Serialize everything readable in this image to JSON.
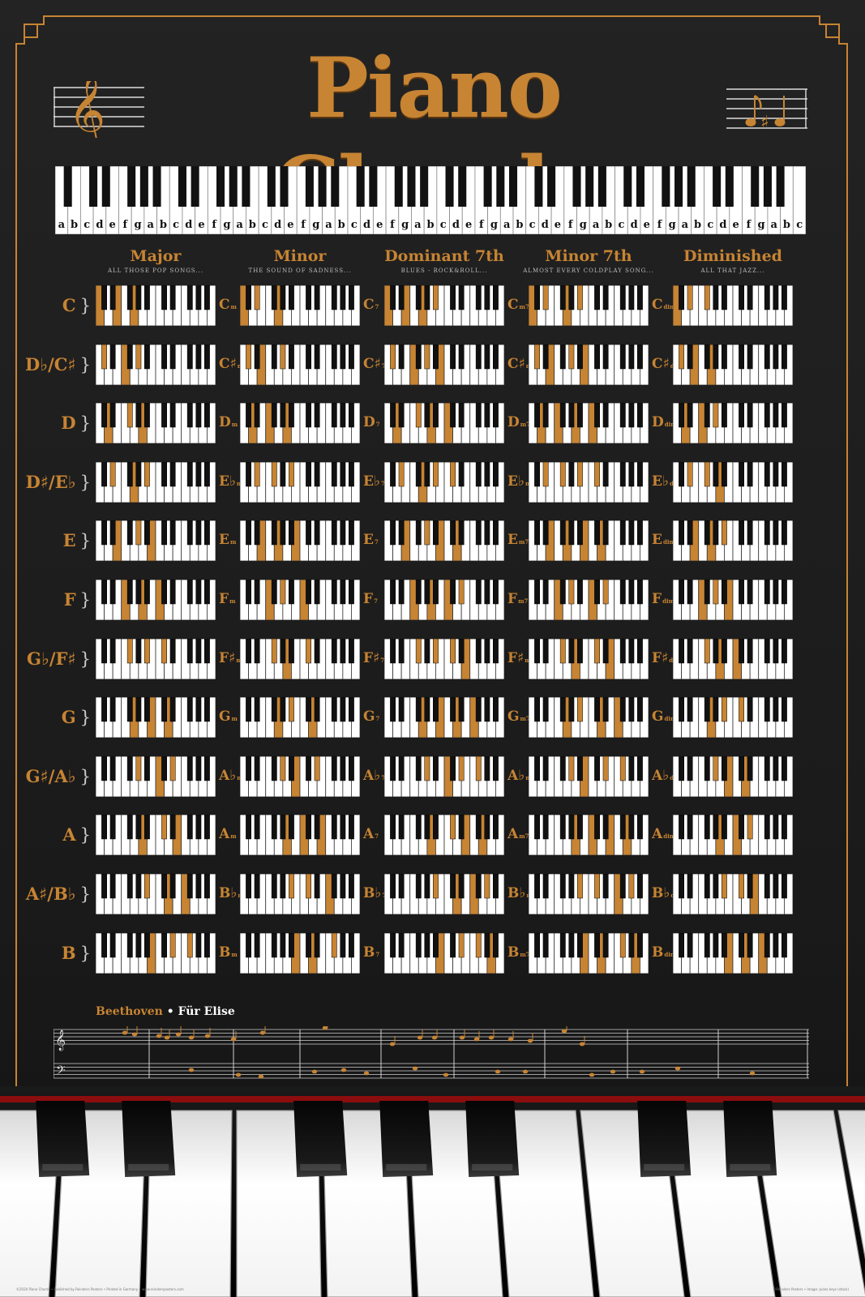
{
  "title": "Piano Chords",
  "strip_letters": "abcdefgabcdefgabcdefgabcdefgabcdefgabcdefgabcdefgabcdefgabc",
  "columns": [
    {
      "heading": "Major",
      "sub": "ALL THOSE POP SONGS...",
      "suffix": ""
    },
    {
      "heading": "Minor",
      "sub": "THE SOUND OF SADNESS...",
      "suffix": "m"
    },
    {
      "heading": "Dominant 7th",
      "sub": "BLUES - ROCK&ROLL...",
      "suffix": "7"
    },
    {
      "heading": "Minor 7th",
      "sub": "ALMOST EVERY COLDPLAY SONG...",
      "suffix": "m7"
    },
    {
      "heading": "Diminished",
      "sub": "ALL THAT JAZZ...",
      "suffix": "dim"
    }
  ],
  "rows": [
    {
      "root": "C",
      "chord_name": "C",
      "pc": 0
    },
    {
      "root": "D♭/C♯",
      "chord_name": "C♯",
      "pc": 1
    },
    {
      "root": "D",
      "chord_name": "D",
      "pc": 2
    },
    {
      "root": "D♯/E♭",
      "chord_name": "E♭",
      "pc": 3
    },
    {
      "root": "E",
      "chord_name": "E",
      "pc": 4
    },
    {
      "root": "F",
      "chord_name": "F",
      "pc": 5
    },
    {
      "root": "G♭/F♯",
      "chord_name": "F♯",
      "pc": 6
    },
    {
      "root": "G",
      "chord_name": "G",
      "pc": 7
    },
    {
      "root": "G♯/A♭",
      "chord_name": "A♭",
      "pc": 8
    },
    {
      "root": "A",
      "chord_name": "A",
      "pc": 9
    },
    {
      "root": "A♯/B♭",
      "chord_name": "B♭",
      "pc": 10
    },
    {
      "root": "B",
      "chord_name": "B",
      "pc": 11
    }
  ],
  "chord_intervals": {
    "major": [
      0,
      4,
      7
    ],
    "minor": [
      0,
      3,
      7
    ],
    "dominant7": [
      0,
      4,
      7,
      10
    ],
    "minor7": [
      0,
      3,
      7,
      10
    ],
    "diminished": [
      0,
      3,
      6
    ]
  },
  "bracket": "}",
  "music": {
    "composer": "Beethoven",
    "separator": " • ",
    "piece": "Für Elise"
  },
  "footer_left": "©2020 Piano Chords • Published by Reinders Posters • Printed in Germany • www.reindersposters.com",
  "footer_right": "©Reinders Posters • Image: piano keys (stock)",
  "colors": {
    "accent": "#c78433",
    "background": "#1c1c1c",
    "white_key": "#ffffff",
    "black_key": "#111111"
  }
}
